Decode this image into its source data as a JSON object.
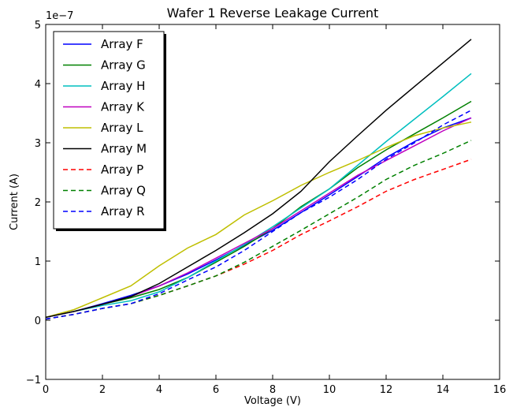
{
  "chart_data": {
    "type": "line",
    "title": "Wafer 1 Reverse Leakage Current",
    "xlabel": "Voltage (V)",
    "ylabel": "Current (A)",
    "offset_text": "1e−7",
    "xlim": [
      0,
      16
    ],
    "ylim": [
      -1,
      5
    ],
    "y_unit_multiplier": 1e-07,
    "x_ticks": [
      0,
      2,
      4,
      6,
      8,
      10,
      12,
      14,
      16
    ],
    "y_ticks": [
      -1,
      0,
      1,
      2,
      3,
      4,
      5
    ],
    "x_tick_labels": [
      "0",
      "2",
      "4",
      "6",
      "8",
      "10",
      "12",
      "14",
      "16"
    ],
    "y_tick_labels": [
      "−1",
      "0",
      "1",
      "2",
      "3",
      "4",
      "5"
    ],
    "grid": false,
    "legend_position": "top-left",
    "series": [
      {
        "name": "Array F",
        "color": "#0000ff",
        "style": "solid",
        "x": [
          0,
          1,
          2,
          3,
          4,
          5,
          6,
          7,
          8,
          9,
          10,
          11,
          12,
          13,
          14,
          15
        ],
        "y": [
          0.05,
          0.15,
          0.28,
          0.42,
          0.58,
          0.78,
          1.02,
          1.27,
          1.52,
          1.82,
          2.12,
          2.43,
          2.75,
          3.02,
          3.25,
          3.42
        ]
      },
      {
        "name": "Array G",
        "color": "#008000",
        "style": "solid",
        "x": [
          0,
          1,
          2,
          3,
          4,
          5,
          6,
          7,
          8,
          9,
          10,
          11,
          12,
          13,
          14,
          15
        ],
        "y": [
          0.05,
          0.15,
          0.27,
          0.38,
          0.52,
          0.72,
          0.98,
          1.25,
          1.55,
          1.92,
          2.22,
          2.58,
          2.88,
          3.15,
          3.42,
          3.7
        ]
      },
      {
        "name": "Array H",
        "color": "#00bfbf",
        "style": "solid",
        "x": [
          0,
          1,
          2,
          3,
          4,
          5,
          6,
          7,
          8,
          9,
          10,
          11,
          12,
          13,
          14,
          15
        ],
        "y": [
          0.05,
          0.15,
          0.25,
          0.33,
          0.48,
          0.72,
          1.0,
          1.28,
          1.58,
          1.9,
          2.22,
          2.62,
          3.02,
          3.4,
          3.78,
          4.17
        ]
      },
      {
        "name": "Array K",
        "color": "#bf00bf",
        "style": "solid",
        "x": [
          0,
          1,
          2,
          3,
          4,
          5,
          6,
          7,
          8,
          9,
          10,
          11,
          12,
          13,
          14,
          15
        ],
        "y": [
          0.05,
          0.15,
          0.27,
          0.4,
          0.58,
          0.8,
          1.05,
          1.3,
          1.55,
          1.85,
          2.15,
          2.45,
          2.7,
          2.95,
          3.2,
          3.42
        ]
      },
      {
        "name": "Array L",
        "color": "#bfbf00",
        "style": "solid",
        "x": [
          0,
          1,
          2,
          3,
          4,
          5,
          6,
          7,
          8,
          9,
          10,
          11,
          12,
          13,
          14,
          15
        ],
        "y": [
          0.05,
          0.18,
          0.38,
          0.58,
          0.92,
          1.22,
          1.45,
          1.78,
          2.02,
          2.28,
          2.5,
          2.7,
          2.92,
          3.12,
          3.25,
          3.35
        ]
      },
      {
        "name": "Array M",
        "color": "#000000",
        "style": "solid",
        "x": [
          0,
          1,
          2,
          3,
          4,
          5,
          6,
          7,
          8,
          9,
          10,
          11,
          12,
          13,
          14,
          15
        ],
        "y": [
          0.05,
          0.15,
          0.27,
          0.4,
          0.62,
          0.9,
          1.18,
          1.48,
          1.8,
          2.18,
          2.68,
          3.12,
          3.55,
          3.95,
          4.35,
          4.75
        ]
      },
      {
        "name": "Array P",
        "color": "#ff0000",
        "style": "dashed",
        "x": [
          0,
          1,
          2,
          3,
          4,
          5,
          6,
          7,
          8,
          9,
          10,
          11,
          12,
          13,
          14,
          15
        ],
        "y": [
          0.02,
          0.1,
          0.2,
          0.28,
          0.42,
          0.58,
          0.75,
          0.95,
          1.18,
          1.45,
          1.68,
          1.92,
          2.18,
          2.38,
          2.55,
          2.72
        ]
      },
      {
        "name": "Array Q",
        "color": "#008000",
        "style": "dashed",
        "x": [
          0,
          1,
          2,
          3,
          4,
          5,
          6,
          7,
          8,
          9,
          10,
          11,
          12,
          13,
          14,
          15
        ],
        "y": [
          0.02,
          0.1,
          0.2,
          0.28,
          0.42,
          0.58,
          0.75,
          0.98,
          1.25,
          1.52,
          1.8,
          2.08,
          2.38,
          2.62,
          2.82,
          3.04
        ]
      },
      {
        "name": "Array R",
        "color": "#0000ff",
        "style": "dashed",
        "x": [
          0,
          1,
          2,
          3,
          4,
          5,
          6,
          7,
          8,
          9,
          10,
          11,
          12,
          13,
          14,
          15
        ],
        "y": [
          0.02,
          0.1,
          0.2,
          0.28,
          0.45,
          0.68,
          0.9,
          1.18,
          1.5,
          1.82,
          2.08,
          2.38,
          2.72,
          3.0,
          3.3,
          3.55
        ]
      }
    ]
  }
}
